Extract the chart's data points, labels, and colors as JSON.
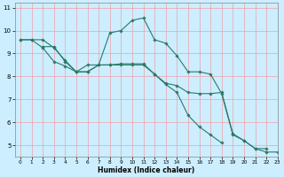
{
  "xlabel": "Humidex (Indice chaleur)",
  "bg_color": "#cceeff",
  "grid_color": "#f0a0a8",
  "line_color": "#2a7a6a",
  "xlim": [
    -0.5,
    23
  ],
  "ylim": [
    4.5,
    11.2
  ],
  "yticks": [
    5,
    6,
    7,
    8,
    9,
    10,
    11
  ],
  "xticks": [
    0,
    1,
    2,
    3,
    4,
    5,
    6,
    7,
    8,
    9,
    10,
    11,
    12,
    13,
    14,
    15,
    16,
    17,
    18,
    19,
    20,
    21,
    22,
    23
  ],
  "line1_x": [
    0,
    1,
    2,
    3,
    4,
    5,
    6,
    7,
    8,
    9,
    10,
    11,
    12,
    13,
    14,
    15,
    16,
    17,
    18,
    19,
    20,
    21,
    22,
    23
  ],
  "line1_y": [
    9.6,
    9.6,
    9.6,
    9.25,
    8.7,
    8.2,
    8.5,
    8.5,
    9.9,
    10.0,
    10.45,
    10.55,
    9.6,
    9.45,
    8.9,
    8.2,
    8.2,
    8.1,
    7.25,
    5.45,
    5.2,
    4.85,
    4.7,
    4.7
  ],
  "line2_x": [
    2,
    3,
    4,
    5,
    6,
    7,
    8,
    9,
    10,
    11,
    12,
    13,
    14,
    15,
    16,
    17,
    18,
    19,
    20,
    21,
    22
  ],
  "line2_y": [
    9.3,
    9.3,
    8.65,
    8.2,
    8.2,
    8.5,
    8.5,
    8.55,
    8.55,
    8.55,
    8.1,
    7.7,
    7.6,
    7.3,
    7.25,
    7.25,
    7.3,
    5.5,
    5.2,
    4.85,
    4.85
  ],
  "line3_x": [
    0,
    1,
    2,
    3,
    4,
    5,
    6,
    7,
    8,
    9,
    10,
    11,
    12,
    13,
    14,
    15,
    16,
    17,
    18
  ],
  "line3_y": [
    9.6,
    9.6,
    9.25,
    8.65,
    8.45,
    8.2,
    8.2,
    8.5,
    8.5,
    8.5,
    8.5,
    8.5,
    8.1,
    7.65,
    7.3,
    6.3,
    5.8,
    5.45,
    5.1
  ]
}
